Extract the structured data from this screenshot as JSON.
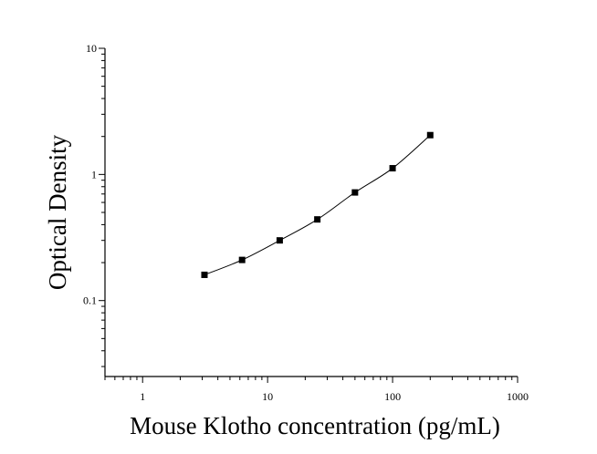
{
  "chart_data": {
    "type": "scatter",
    "title": "",
    "xlabel": "Mouse Klotho concentration (pg/mL)",
    "ylabel": "Optical Density",
    "x_scale": "log",
    "y_scale": "log",
    "xlim": [
      0.5,
      1000
    ],
    "ylim": [
      0.025,
      10
    ],
    "x_ticks": [
      {
        "value": 1,
        "label": "1"
      },
      {
        "value": 10,
        "label": "10"
      },
      {
        "value": 100,
        "label": "100"
      },
      {
        "value": 1000,
        "label": "1000"
      }
    ],
    "y_ticks": [
      {
        "value": 0.1,
        "label": "0.1"
      },
      {
        "value": 1,
        "label": "1"
      },
      {
        "value": 10,
        "label": "10"
      }
    ],
    "grid": false,
    "legend": "none",
    "series": [
      {
        "x": [
          3.125,
          6.25,
          12.5,
          25,
          50,
          100,
          200
        ],
        "y": [
          0.16,
          0.21,
          0.3,
          0.44,
          0.72,
          1.12,
          2.05
        ],
        "marker": "square",
        "fit_curve": true
      }
    ],
    "colors": {
      "marker": "#000000",
      "line": "#000000",
      "axis": "#000000"
    }
  }
}
